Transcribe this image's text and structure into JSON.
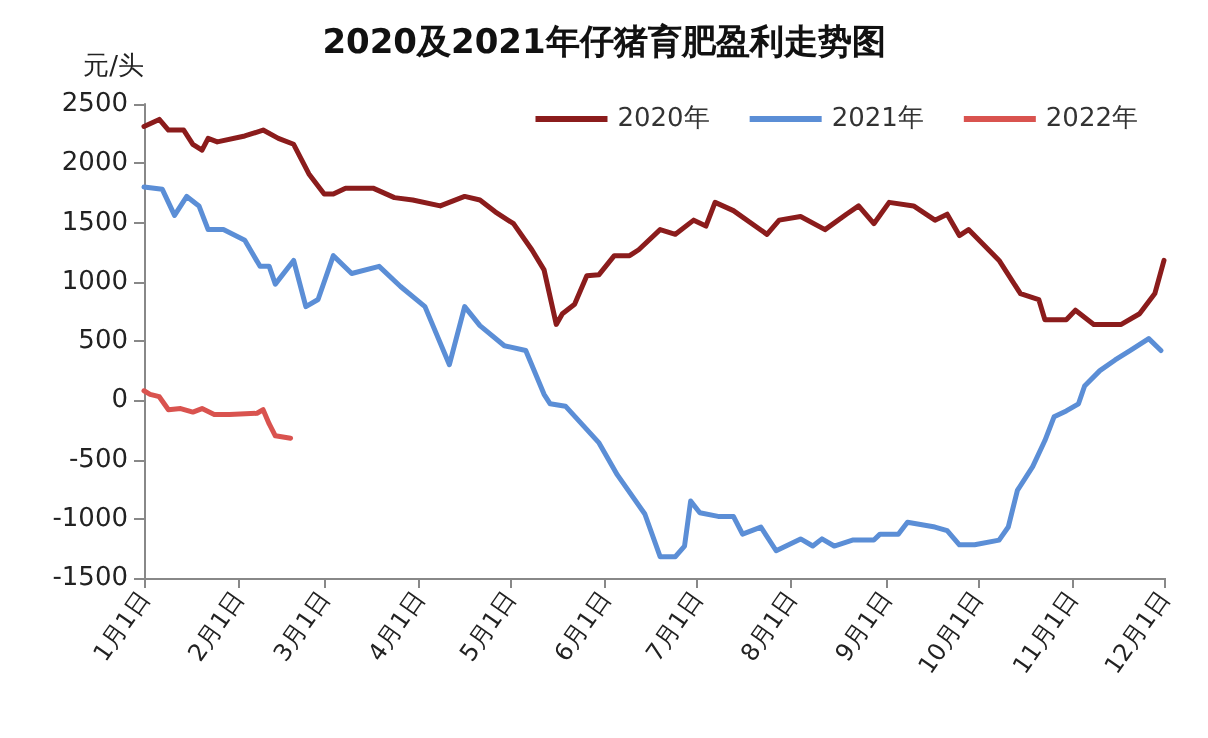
{
  "chart_data": {
    "type": "line",
    "title": "2020及2021年仔猪育肥盈利走势图",
    "ylabel": "元/头",
    "xlim": [
      "--01-01",
      "--12-01"
    ],
    "xticks": [
      {
        "value": "--01-01",
        "label": "1月1日"
      },
      {
        "value": "--02-01",
        "label": "2月1日"
      },
      {
        "value": "--03-01",
        "label": "3月1日"
      },
      {
        "value": "--04-01",
        "label": "4月1日"
      },
      {
        "value": "--05-01",
        "label": "5月1日"
      },
      {
        "value": "--06-01",
        "label": "6月1日"
      },
      {
        "value": "--07-01",
        "label": "7月1日"
      },
      {
        "value": "--08-01",
        "label": "8月1日"
      },
      {
        "value": "--09-01",
        "label": "9月1日"
      },
      {
        "value": "--10-01",
        "label": "10月1日"
      },
      {
        "value": "--11-01",
        "label": "11月1日"
      },
      {
        "value": "--12-01",
        "label": "12月1日"
      }
    ],
    "ylim": [
      -1500,
      2500
    ],
    "yticks": [
      -1500,
      -1000,
      -500,
      0,
      500,
      1000,
      1500,
      2000,
      2500
    ],
    "grid": false,
    "legend": "top right",
    "marker": "none",
    "line_style": "solid",
    "series": [
      {
        "name": "2020年",
        "color": "#8b1c1c",
        "x": [
          "--01-01",
          "--01-06",
          "--01-09",
          "--01-14",
          "--01-17",
          "--01-20",
          "--01-22",
          "--01-25",
          "--02-03",
          "--02-09",
          "--02-14",
          "--02-19",
          "--02-24",
          "--03-01",
          "--03-04",
          "--03-08",
          "--03-17",
          "--03-24",
          "--03-30",
          "--04-08",
          "--04-16",
          "--04-21",
          "--04-26",
          "--05-02",
          "--05-08",
          "--05-12",
          "--05-16",
          "--05-18",
          "--05-22",
          "--05-26",
          "--05-30",
          "--06-04",
          "--06-09",
          "--06-12",
          "--06-19",
          "--06-24",
          "--06-30",
          "--07-04",
          "--07-07",
          "--07-13",
          "--07-24",
          "--07-28",
          "--08-04",
          "--08-12",
          "--08-19",
          "--08-23",
          "--08-28",
          "--09-02",
          "--09-10",
          "--09-17",
          "--09-21",
          "--09-25",
          "--09-28",
          "--10-08",
          "--10-15",
          "--10-21",
          "--10-23",
          "--10-30",
          "--11-02",
          "--11-08",
          "--11-17",
          "--11-23",
          "--11-28",
          "--12-01"
        ],
        "values": [
          2310,
          2370,
          2280,
          2280,
          2160,
          2110,
          2210,
          2180,
          2230,
          2280,
          2210,
          2160,
          1910,
          1740,
          1740,
          1790,
          1790,
          1710,
          1690,
          1640,
          1720,
          1690,
          1590,
          1490,
          1270,
          1100,
          640,
          730,
          810,
          1050,
          1060,
          1220,
          1220,
          1270,
          1440,
          1400,
          1520,
          1470,
          1670,
          1600,
          1400,
          1520,
          1550,
          1440,
          1570,
          1640,
          1490,
          1670,
          1640,
          1520,
          1570,
          1390,
          1440,
          1180,
          900,
          850,
          680,
          680,
          760,
          640,
          640,
          730,
          900,
          1180
        ]
      },
      {
        "name": "2021年",
        "color": "#5b8ed6",
        "x": [
          "--01-01",
          "--01-07",
          "--01-11",
          "--01-15",
          "--01-19",
          "--01-22",
          "--01-27",
          "--02-03",
          "--02-08",
          "--02-11",
          "--02-13",
          "--02-19",
          "--02-23",
          "--02-27",
          "--03-04",
          "--03-10",
          "--03-19",
          "--03-26",
          "--04-03",
          "--04-11",
          "--04-16",
          "--04-21",
          "--04-29",
          "--05-06",
          "--05-12",
          "--05-14",
          "--05-19",
          "--05-30",
          "--06-05",
          "--06-14",
          "--06-19",
          "--06-24",
          "--06-27",
          "--06-29",
          "--07-02",
          "--07-08",
          "--07-13",
          "--07-16",
          "--07-22",
          "--07-27",
          "--08-04",
          "--08-08",
          "--08-11",
          "--08-15",
          "--08-21",
          "--08-28",
          "--08-30",
          "--09-05",
          "--09-08",
          "--09-17",
          "--09-21",
          "--09-25",
          "--09-30",
          "--10-08",
          "--10-11",
          "--10-14",
          "--10-19",
          "--10-23",
          "--10-26",
          "--10-30",
          "--11-03",
          "--11-05",
          "--11-10",
          "--11-15",
          "--11-20",
          "--11-26",
          "--11-30"
        ],
        "values": [
          1800,
          1780,
          1560,
          1720,
          1640,
          1440,
          1440,
          1350,
          1130,
          1130,
          980,
          1180,
          790,
          850,
          1220,
          1070,
          1130,
          960,
          790,
          300,
          790,
          630,
          460,
          420,
          50,
          -30,
          -50,
          -360,
          -630,
          -960,
          -1320,
          -1320,
          -1230,
          -850,
          -950,
          -980,
          -980,
          -1130,
          -1070,
          -1270,
          -1170,
          -1230,
          -1170,
          -1230,
          -1180,
          -1180,
          -1130,
          -1130,
          -1030,
          -1070,
          -1100,
          -1220,
          -1220,
          -1180,
          -1070,
          -760,
          -560,
          -340,
          -140,
          -90,
          -30,
          120,
          250,
          340,
          420,
          520,
          420
        ]
      },
      {
        "name": "2022年",
        "color": "#d9534f",
        "x": [
          "--01-01",
          "--01-03",
          "--01-06",
          "--01-09",
          "--01-13",
          "--01-17",
          "--01-20",
          "--01-24",
          "--01-29",
          "--02-07",
          "--02-09",
          "--02-11",
          "--02-13",
          "--02-18"
        ],
        "values": [
          80,
          50,
          30,
          -80,
          -70,
          -100,
          -70,
          -120,
          -120,
          -110,
          -80,
          -200,
          -300,
          -320
        ]
      }
    ]
  }
}
